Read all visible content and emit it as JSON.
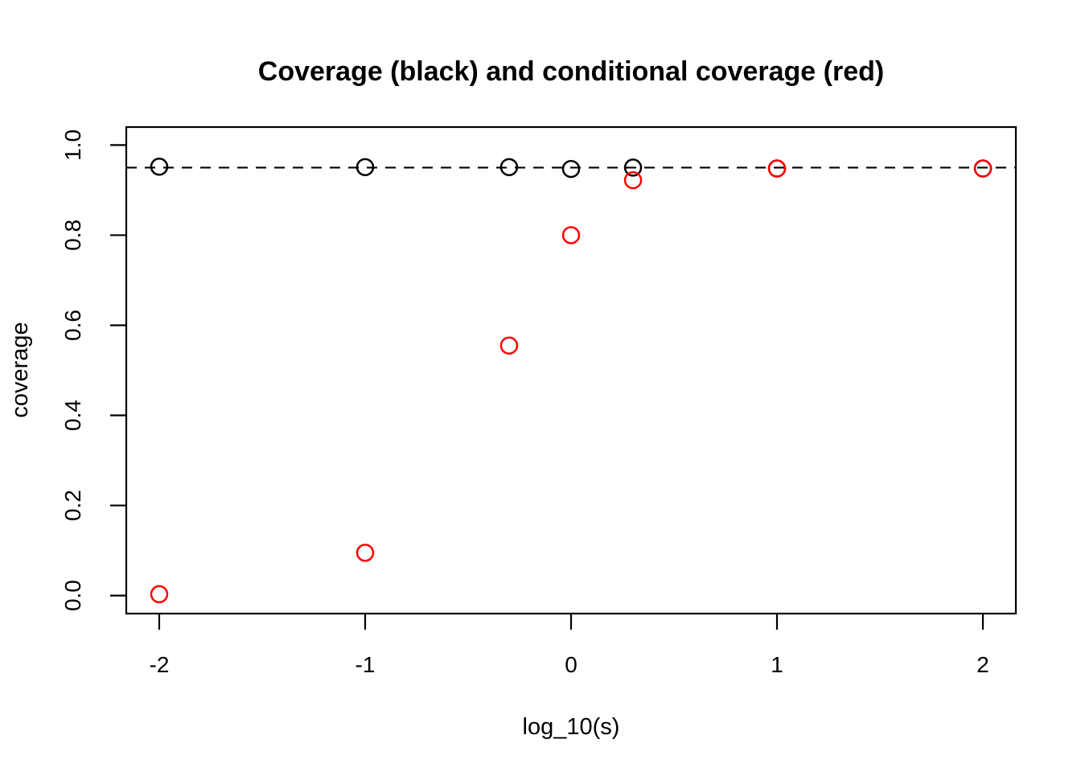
{
  "chart_data": {
    "type": "scatter",
    "title": "Coverage (black) and conditional coverage (red)",
    "xlabel": "log_10(s)",
    "ylabel": "coverage",
    "xlim": [
      -2.16,
      2.16
    ],
    "ylim": [
      -0.04,
      1.04
    ],
    "x_ticks": [
      {
        "value": -2,
        "label": "-2"
      },
      {
        "value": -1,
        "label": "-1"
      },
      {
        "value": 0,
        "label": "0"
      },
      {
        "value": 1,
        "label": "1"
      },
      {
        "value": 2,
        "label": "2"
      }
    ],
    "y_ticks": [
      {
        "value": 0.0,
        "label": "0.0"
      },
      {
        "value": 0.2,
        "label": "0.2"
      },
      {
        "value": 0.4,
        "label": "0.4"
      },
      {
        "value": 0.6,
        "label": "0.6"
      },
      {
        "value": 0.8,
        "label": "0.8"
      },
      {
        "value": 1.0,
        "label": "1.0"
      }
    ],
    "grid": false,
    "legend": "none",
    "marker": "open-circle",
    "reference_line": {
      "orientation": "horizontal",
      "value": 0.95,
      "style": "dashed",
      "color": "#000000"
    },
    "series": [
      {
        "name": "coverage",
        "color": "#000000",
        "points": [
          {
            "x": -2.0,
            "y": 0.952
          },
          {
            "x": -1.0,
            "y": 0.951
          },
          {
            "x": -0.301,
            "y": 0.951
          },
          {
            "x": 0.0,
            "y": 0.947
          },
          {
            "x": 0.301,
            "y": 0.95
          },
          {
            "x": 1.0,
            "y": 0.948
          },
          {
            "x": 2.0,
            "y": 0.948
          }
        ]
      },
      {
        "name": "conditional coverage",
        "color": "#FF0000",
        "points": [
          {
            "x": -2.0,
            "y": 0.003
          },
          {
            "x": -1.0,
            "y": 0.095
          },
          {
            "x": -0.301,
            "y": 0.555
          },
          {
            "x": 0.0,
            "y": 0.8
          },
          {
            "x": 0.301,
            "y": 0.922
          },
          {
            "x": 1.0,
            "y": 0.948
          },
          {
            "x": 2.0,
            "y": 0.948
          }
        ]
      }
    ]
  }
}
